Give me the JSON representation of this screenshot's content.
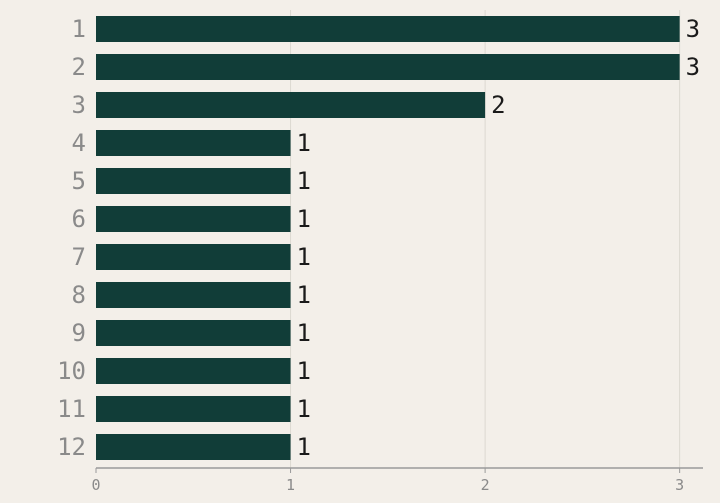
{
  "chart_data": {
    "type": "bar",
    "orientation": "horizontal",
    "title": "",
    "xlabel": "",
    "ylabel": "",
    "categories": [
      "1",
      "2",
      "3",
      "4",
      "5",
      "6",
      "7",
      "8",
      "9",
      "10",
      "11",
      "12"
    ],
    "values": [
      3,
      3,
      2,
      1,
      1,
      1,
      1,
      1,
      1,
      1,
      1,
      1
    ],
    "value_labels": [
      "3",
      "3",
      "2",
      "1",
      "1",
      "1",
      "1",
      "1",
      "1",
      "1",
      "1",
      "1"
    ],
    "xlim": [
      0,
      3.12
    ],
    "x_ticks": [
      0,
      1,
      2,
      3
    ],
    "x_tick_labels": [
      "0",
      "1",
      "2",
      "3"
    ],
    "grid": true,
    "legend": "none",
    "colors": {
      "bar": "#113d38",
      "background": "#f3efe9",
      "gridline": "#dcd8d1",
      "axis": "#9a9a9a",
      "category_text": "#8a8a8a",
      "value_text": "#1a1a1a"
    }
  }
}
